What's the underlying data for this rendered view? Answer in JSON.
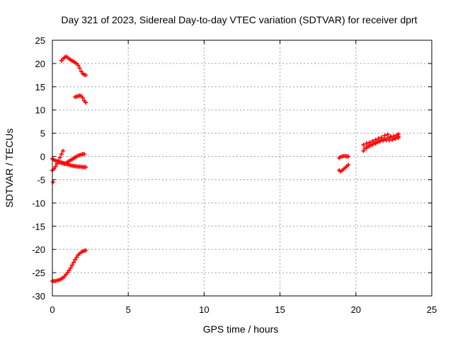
{
  "chart_data": {
    "type": "scatter",
    "title": "Day 321 of 2023, Sidereal Day-to-day VTEC variation (SDTVAR) for receiver dprt",
    "xlabel": "GPS time / hours",
    "ylabel": "SDTVAR / TECUs",
    "xlim": [
      0,
      25
    ],
    "ylim": [
      -30,
      25
    ],
    "xticks": [
      0,
      5,
      10,
      15,
      20,
      25
    ],
    "yticks": [
      -30,
      -25,
      -20,
      -15,
      -10,
      -5,
      0,
      5,
      10,
      15,
      20,
      25
    ],
    "grid": true,
    "marker": "plus",
    "color": "#ff0000",
    "series": [
      {
        "name": "arc-top",
        "x": [
          0.6,
          0.7,
          0.8,
          0.9,
          1.0,
          1.1,
          1.2,
          1.3,
          1.4,
          1.5,
          1.6,
          1.7,
          1.8,
          1.9,
          2.0,
          2.1,
          2.2
        ],
        "y": [
          20.6,
          21.0,
          21.3,
          21.5,
          21.3,
          21.0,
          20.8,
          20.6,
          20.4,
          20.2,
          20.0,
          19.6,
          19.0,
          18.3,
          17.8,
          17.6,
          17.5
        ]
      },
      {
        "name": "arc-13",
        "x": [
          1.5,
          1.6,
          1.7,
          1.8,
          1.9,
          2.0,
          2.1,
          2.2
        ],
        "y": [
          12.8,
          12.9,
          13.0,
          13.1,
          13.0,
          12.6,
          12.0,
          11.6
        ]
      },
      {
        "name": "arc-rising-zero",
        "x": [
          0.0,
          0.1,
          0.2,
          0.3,
          0.4,
          0.5,
          0.6,
          0.7
        ],
        "y": [
          -3.0,
          -2.7,
          -2.2,
          -1.6,
          -0.9,
          -0.2,
          0.5,
          1.2
        ]
      },
      {
        "name": "arc-descending",
        "x": [
          0.0,
          0.1,
          0.2,
          0.3,
          0.4,
          0.5,
          0.6,
          0.7,
          0.8,
          0.9,
          1.0
        ],
        "y": [
          -0.5,
          -0.7,
          -0.9,
          -1.0,
          -1.2,
          -1.3,
          -1.4,
          -1.4,
          -1.5,
          -1.5,
          -1.5
        ]
      },
      {
        "name": "arc-flat-lower",
        "x": [
          0.5,
          0.6,
          0.7,
          0.8,
          0.9,
          1.0,
          1.1,
          1.2,
          1.3,
          1.4,
          1.5,
          1.6,
          1.7,
          1.8,
          1.9,
          2.0,
          2.1,
          2.2
        ],
        "y": [
          -1.2,
          -1.3,
          -1.4,
          -1.5,
          -1.6,
          -1.7,
          -1.8,
          -1.9,
          -2.0,
          -2.0,
          -2.1,
          -2.1,
          -2.2,
          -2.2,
          -2.2,
          -2.3,
          -2.3,
          -2.3
        ]
      },
      {
        "name": "arc-flat-upper",
        "x": [
          0.8,
          0.9,
          1.0,
          1.1,
          1.2,
          1.3,
          1.4,
          1.5,
          1.6,
          1.7,
          1.8,
          1.9,
          2.0,
          2.1
        ],
        "y": [
          -1.6,
          -1.4,
          -1.2,
          -1.0,
          -0.8,
          -0.6,
          -0.4,
          -0.2,
          0.0,
          0.2,
          0.3,
          0.4,
          0.5,
          0.5
        ]
      },
      {
        "name": "arc-outlier",
        "x": [
          0.05
        ],
        "y": [
          -5.5
        ]
      },
      {
        "name": "arc-bottom",
        "x": [
          0.0,
          0.1,
          0.2,
          0.3,
          0.4,
          0.5,
          0.6,
          0.7,
          0.8,
          0.9,
          1.0,
          1.1,
          1.2,
          1.3,
          1.4,
          1.5,
          1.6,
          1.7,
          1.8,
          1.9,
          2.0,
          2.1,
          2.2
        ],
        "y": [
          -26.8,
          -26.8,
          -26.8,
          -26.7,
          -26.6,
          -26.5,
          -26.3,
          -26.1,
          -25.8,
          -25.4,
          -25.0,
          -24.5,
          -24.0,
          -23.4,
          -22.8,
          -22.2,
          -21.7,
          -21.2,
          -20.9,
          -20.6,
          -20.4,
          -20.3,
          -20.2
        ]
      },
      {
        "name": "arc-19-20",
        "x": [
          18.9,
          19.0,
          19.1,
          19.2,
          19.3,
          19.4,
          19.5,
          18.9,
          19.0,
          19.1,
          19.2,
          19.3,
          19.4,
          19.5
        ],
        "y": [
          -0.3,
          -0.1,
          0.0,
          0.1,
          0.1,
          0.0,
          0.0,
          -3.0,
          -3.2,
          -3.0,
          -2.7,
          -2.4,
          -2.1,
          -1.8
        ]
      },
      {
        "name": "arc-20-23-a",
        "x": [
          20.5,
          20.7,
          20.9,
          21.1,
          21.3,
          21.5,
          21.7,
          21.9,
          22.1,
          22.3,
          22.5,
          22.7,
          22.8
        ],
        "y": [
          1.2,
          1.8,
          2.2,
          2.5,
          2.8,
          3.2,
          3.6,
          3.8,
          4.0,
          4.2,
          4.4,
          4.6,
          4.8
        ]
      },
      {
        "name": "arc-20-23-b",
        "x": [
          20.5,
          20.7,
          20.9,
          21.1,
          21.3,
          21.5,
          21.7,
          21.9,
          22.1,
          22.3,
          22.5,
          22.7,
          22.8
        ],
        "y": [
          2.5,
          2.8,
          3.0,
          3.3,
          3.6,
          3.9,
          4.1,
          4.5,
          4.7,
          4.3,
          3.9,
          4.1,
          4.3
        ]
      },
      {
        "name": "arc-20-23-c",
        "x": [
          20.6,
          20.8,
          21.0,
          21.2,
          21.4,
          21.6,
          21.8,
          22.0,
          22.2,
          22.4,
          22.6,
          22.8
        ],
        "y": [
          1.8,
          2.2,
          2.6,
          2.9,
          3.1,
          3.3,
          3.4,
          3.5,
          3.5,
          3.6,
          3.8,
          4.0
        ]
      }
    ]
  }
}
